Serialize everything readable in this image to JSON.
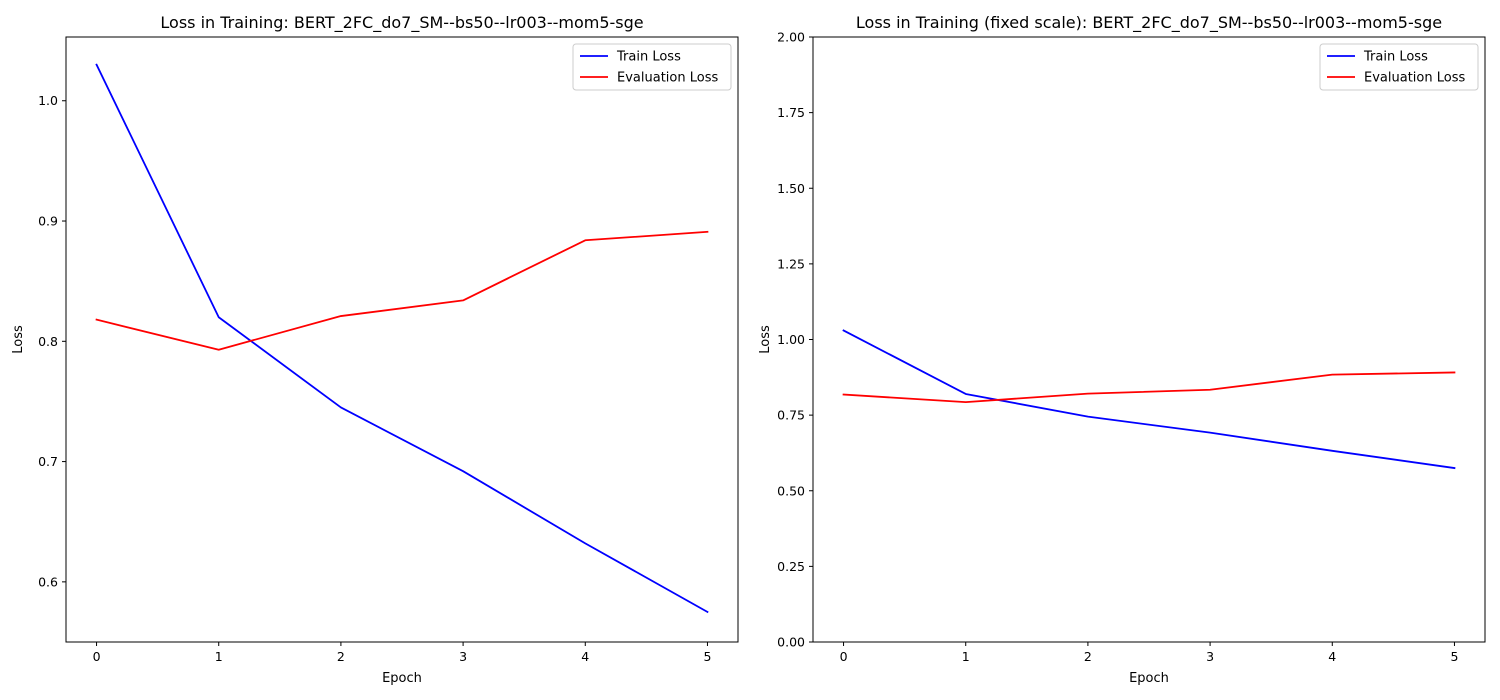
{
  "chart_data": [
    {
      "type": "line",
      "title": "Loss in Training: BERT_2FC_do7_SM--bs50--lr003--mom5-sge",
      "xlabel": "Epoch",
      "ylabel": "Loss",
      "x": [
        0,
        1,
        2,
        3,
        4,
        5
      ],
      "xlim": [
        -0.25,
        5.25
      ],
      "ylim": [
        0.55,
        1.053
      ],
      "xticks": [
        0,
        1,
        2,
        3,
        4,
        5
      ],
      "yticks": [
        0.6,
        0.7,
        0.8,
        0.9,
        1.0
      ],
      "ytick_labels": [
        "0.6",
        "0.7",
        "0.8",
        "0.9",
        "1.0"
      ],
      "grid": false,
      "legend_position": "top-right",
      "series": [
        {
          "name": "Train Loss",
          "color": "#0000ff",
          "values": [
            1.03,
            0.82,
            0.745,
            0.692,
            0.632,
            0.575
          ]
        },
        {
          "name": "Evaluation Loss",
          "color": "#ff0000",
          "values": [
            0.818,
            0.793,
            0.821,
            0.834,
            0.884,
            0.891
          ]
        }
      ]
    },
    {
      "type": "line",
      "title": "Loss in Training (fixed scale): BERT_2FC_do7_SM--bs50--lr003--mom5-sge",
      "xlabel": "Epoch",
      "ylabel": "Loss",
      "x": [
        0,
        1,
        2,
        3,
        4,
        5
      ],
      "xlim": [
        -0.25,
        5.25
      ],
      "ylim": [
        0,
        2
      ],
      "xticks": [
        0,
        1,
        2,
        3,
        4,
        5
      ],
      "yticks": [
        0,
        0.25,
        0.5,
        0.75,
        1.0,
        1.25,
        1.5,
        1.75,
        2.0
      ],
      "ytick_labels": [
        "0.00",
        "0.25",
        "0.50",
        "0.75",
        "1.00",
        "1.25",
        "1.50",
        "1.75",
        "2.00"
      ],
      "grid": false,
      "legend_position": "top-right",
      "series": [
        {
          "name": "Train Loss",
          "color": "#0000ff",
          "values": [
            1.03,
            0.82,
            0.745,
            0.692,
            0.632,
            0.575
          ]
        },
        {
          "name": "Evaluation Loss",
          "color": "#ff0000",
          "values": [
            0.818,
            0.793,
            0.821,
            0.834,
            0.884,
            0.891
          ]
        }
      ]
    }
  ]
}
